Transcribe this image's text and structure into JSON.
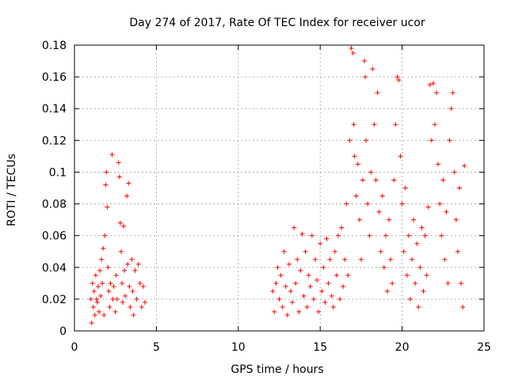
{
  "chart_data": {
    "type": "scatter",
    "title": "Day 274 of 2017, Rate Of TEC Index for receiver ucor",
    "xlabel": "GPS time / hours",
    "ylabel": "ROTI / TECUs",
    "xlim": [
      0,
      25
    ],
    "ylim": [
      0,
      0.18
    ],
    "xticks": [
      "0",
      "5",
      "10",
      "15",
      "20",
      "25"
    ],
    "xtick_values": [
      0,
      5,
      10,
      15,
      20,
      25
    ],
    "yticks": [
      "0",
      "0.02",
      "0.04",
      "0.06",
      "0.08",
      "0.1",
      "0.12",
      "0.14",
      "0.16",
      "0.18"
    ],
    "ytick_values": [
      0,
      0.02,
      0.04,
      0.06,
      0.08,
      0.1,
      0.12,
      0.14,
      0.16,
      0.18
    ],
    "grid": true,
    "marker": "+",
    "color": "#ff0000",
    "series": [
      {
        "points": [
          [
            1.0,
            0.02
          ],
          [
            1.05,
            0.005
          ],
          [
            1.1,
            0.03
          ],
          [
            1.15,
            0.015
          ],
          [
            1.2,
            0.025
          ],
          [
            1.25,
            0.01
          ],
          [
            1.3,
            0.035
          ],
          [
            1.35,
            0.02
          ],
          [
            1.4,
            0.018
          ],
          [
            1.45,
            0.028
          ],
          [
            1.5,
            0.012
          ],
          [
            1.55,
            0.038
          ],
          [
            1.6,
            0.022
          ],
          [
            1.65,
            0.045
          ],
          [
            1.7,
            0.03
          ],
          [
            1.75,
            0.052
          ],
          [
            1.8,
            0.01
          ],
          [
            1.85,
            0.06
          ],
          [
            1.9,
            0.092
          ],
          [
            1.95,
            0.1
          ],
          [
            2.0,
            0.078
          ],
          [
            2.05,
            0.04
          ],
          [
            2.1,
            0.025
          ],
          [
            2.15,
            0.015
          ],
          [
            2.2,
            0.03
          ],
          [
            2.3,
            0.111
          ],
          [
            2.35,
            0.02
          ],
          [
            2.4,
            0.028
          ],
          [
            2.5,
            0.012
          ],
          [
            2.55,
            0.035
          ],
          [
            2.6,
            0.02
          ],
          [
            2.7,
            0.106
          ],
          [
            2.75,
            0.097
          ],
          [
            2.8,
            0.068
          ],
          [
            2.85,
            0.05
          ],
          [
            2.9,
            0.03
          ],
          [
            2.95,
            0.018
          ],
          [
            3.0,
            0.066
          ],
          [
            3.05,
            0.038
          ],
          [
            3.1,
            0.022
          ],
          [
            3.2,
            0.085
          ],
          [
            3.25,
            0.042
          ],
          [
            3.3,
            0.093
          ],
          [
            3.35,
            0.028
          ],
          [
            3.4,
            0.015
          ],
          [
            3.5,
            0.045
          ],
          [
            3.55,
            0.025
          ],
          [
            3.6,
            0.01
          ],
          [
            3.7,
            0.038
          ],
          [
            3.8,
            0.02
          ],
          [
            3.9,
            0.042
          ],
          [
            4.0,
            0.03
          ],
          [
            4.1,
            0.015
          ],
          [
            4.2,
            0.028
          ],
          [
            4.3,
            0.018
          ],
          [
            12.1,
            0.025
          ],
          [
            12.2,
            0.012
          ],
          [
            12.3,
            0.03
          ],
          [
            12.4,
            0.04
          ],
          [
            12.5,
            0.02
          ],
          [
            12.6,
            0.035
          ],
          [
            12.7,
            0.015
          ],
          [
            12.8,
            0.05
          ],
          [
            12.9,
            0.028
          ],
          [
            13.0,
            0.01
          ],
          [
            13.1,
            0.042
          ],
          [
            13.2,
            0.025
          ],
          [
            13.3,
            0.018
          ],
          [
            13.4,
            0.065
          ],
          [
            13.5,
            0.03
          ],
          [
            13.6,
            0.045
          ],
          [
            13.7,
            0.012
          ],
          [
            13.8,
            0.038
          ],
          [
            13.9,
            0.061
          ],
          [
            14.0,
            0.022
          ],
          [
            14.1,
            0.05
          ],
          [
            14.2,
            0.015
          ],
          [
            14.3,
            0.035
          ],
          [
            14.4,
            0.028
          ],
          [
            14.5,
            0.06
          ],
          [
            14.6,
            0.02
          ],
          [
            14.7,
            0.045
          ],
          [
            14.8,
            0.032
          ],
          [
            14.9,
            0.012
          ],
          [
            15.0,
            0.055
          ],
          [
            15.1,
            0.025
          ],
          [
            15.2,
            0.04
          ],
          [
            15.3,
            0.018
          ],
          [
            15.4,
            0.058
          ],
          [
            15.5,
            0.03
          ],
          [
            15.6,
            0.045
          ],
          [
            15.7,
            0.022
          ],
          [
            15.8,
            0.015
          ],
          [
            15.9,
            0.05
          ],
          [
            16.0,
            0.035
          ],
          [
            16.1,
            0.06
          ],
          [
            16.2,
            0.02
          ],
          [
            16.3,
            0.065
          ],
          [
            16.4,
            0.028
          ],
          [
            16.5,
            0.045
          ],
          [
            16.6,
            0.08
          ],
          [
            16.7,
            0.035
          ],
          [
            16.8,
            0.12
          ],
          [
            16.9,
            0.178
          ],
          [
            17.0,
            0.175
          ],
          [
            17.05,
            0.13
          ],
          [
            17.1,
            0.11
          ],
          [
            17.2,
            0.085
          ],
          [
            17.3,
            0.105
          ],
          [
            17.4,
            0.07
          ],
          [
            17.5,
            0.045
          ],
          [
            17.6,
            0.095
          ],
          [
            17.7,
            0.17
          ],
          [
            17.75,
            0.16
          ],
          [
            17.8,
            0.12
          ],
          [
            17.9,
            0.08
          ],
          [
            18.0,
            0.06
          ],
          [
            18.1,
            0.1
          ],
          [
            18.2,
            0.165
          ],
          [
            18.3,
            0.13
          ],
          [
            18.4,
            0.095
          ],
          [
            18.5,
            0.15
          ],
          [
            18.6,
            0.075
          ],
          [
            18.7,
            0.05
          ],
          [
            18.8,
            0.085
          ],
          [
            18.9,
            0.04
          ],
          [
            19.0,
            0.06
          ],
          [
            19.1,
            0.025
          ],
          [
            19.2,
            0.07
          ],
          [
            19.3,
            0.045
          ],
          [
            19.4,
            0.03
          ],
          [
            19.5,
            0.095
          ],
          [
            19.6,
            0.13
          ],
          [
            19.7,
            0.16
          ],
          [
            19.8,
            0.158
          ],
          [
            19.9,
            0.11
          ],
          [
            20.0,
            0.08
          ],
          [
            20.1,
            0.05
          ],
          [
            20.2,
            0.09
          ],
          [
            20.3,
            0.035
          ],
          [
            20.4,
            0.06
          ],
          [
            20.5,
            0.02
          ],
          [
            20.6,
            0.045
          ],
          [
            20.7,
            0.07
          ],
          [
            20.8,
            0.03
          ],
          [
            20.9,
            0.055
          ],
          [
            21.0,
            0.015
          ],
          [
            21.1,
            0.04
          ],
          [
            21.2,
            0.065
          ],
          [
            21.3,
            0.025
          ],
          [
            21.4,
            0.06
          ],
          [
            21.5,
            0.035
          ],
          [
            21.6,
            0.078
          ],
          [
            21.7,
            0.155
          ],
          [
            21.8,
            0.12
          ],
          [
            21.9,
            0.156
          ],
          [
            22.0,
            0.13
          ],
          [
            22.1,
            0.15
          ],
          [
            22.2,
            0.105
          ],
          [
            22.3,
            0.08
          ],
          [
            22.4,
            0.06
          ],
          [
            22.5,
            0.095
          ],
          [
            22.6,
            0.045
          ],
          [
            22.7,
            0.075
          ],
          [
            22.8,
            0.03
          ],
          [
            22.9,
            0.12
          ],
          [
            23.0,
            0.14
          ],
          [
            23.1,
            0.15
          ],
          [
            23.2,
            0.1
          ],
          [
            23.3,
            0.07
          ],
          [
            23.4,
            0.05
          ],
          [
            23.5,
            0.09
          ],
          [
            23.6,
            0.03
          ],
          [
            23.7,
            0.015
          ],
          [
            23.8,
            0.104
          ]
        ]
      }
    ]
  }
}
